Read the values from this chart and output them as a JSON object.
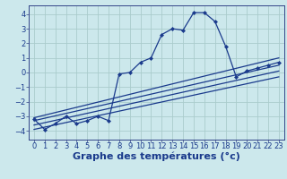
{
  "xlabel": "Graphe des températures (°c)",
  "background_color": "#cce8ec",
  "grid_color": "#aacccc",
  "line_color": "#1a3a8c",
  "xlim": [
    -0.5,
    23.5
  ],
  "ylim": [
    -4.6,
    4.6
  ],
  "xticks": [
    0,
    1,
    2,
    3,
    4,
    5,
    6,
    7,
    8,
    9,
    10,
    11,
    12,
    13,
    14,
    15,
    16,
    17,
    18,
    19,
    20,
    21,
    22,
    23
  ],
  "yticks": [
    -4,
    -3,
    -2,
    -1,
    0,
    1,
    2,
    3,
    4
  ],
  "temp_data": {
    "x": [
      0,
      1,
      2,
      3,
      4,
      5,
      6,
      7,
      8,
      9,
      10,
      11,
      12,
      13,
      14,
      15,
      16,
      17,
      18,
      19,
      20,
      21,
      22,
      23
    ],
    "y": [
      -3.2,
      -3.9,
      -3.5,
      -3.0,
      -3.5,
      -3.3,
      -3.0,
      -3.3,
      -0.1,
      0.0,
      0.7,
      1.0,
      2.6,
      3.0,
      2.9,
      4.1,
      4.1,
      3.5,
      1.8,
      -0.3,
      0.1,
      0.3,
      0.5,
      0.7
    ]
  },
  "line1": {
    "x": [
      0,
      23
    ],
    "y": [
      -3.1,
      1.0
    ]
  },
  "line2": {
    "x": [
      0,
      23
    ],
    "y": [
      -3.3,
      0.5
    ]
  },
  "line3": {
    "x": [
      0,
      23
    ],
    "y": [
      -3.6,
      0.1
    ]
  },
  "line4": {
    "x": [
      0,
      23
    ],
    "y": [
      -3.9,
      -0.3
    ]
  },
  "font_size_xlabel": 8,
  "font_size_ticks": 6,
  "marker": "D",
  "markersize": 2.0,
  "linewidth": 0.9,
  "straight_linewidth": 0.9
}
